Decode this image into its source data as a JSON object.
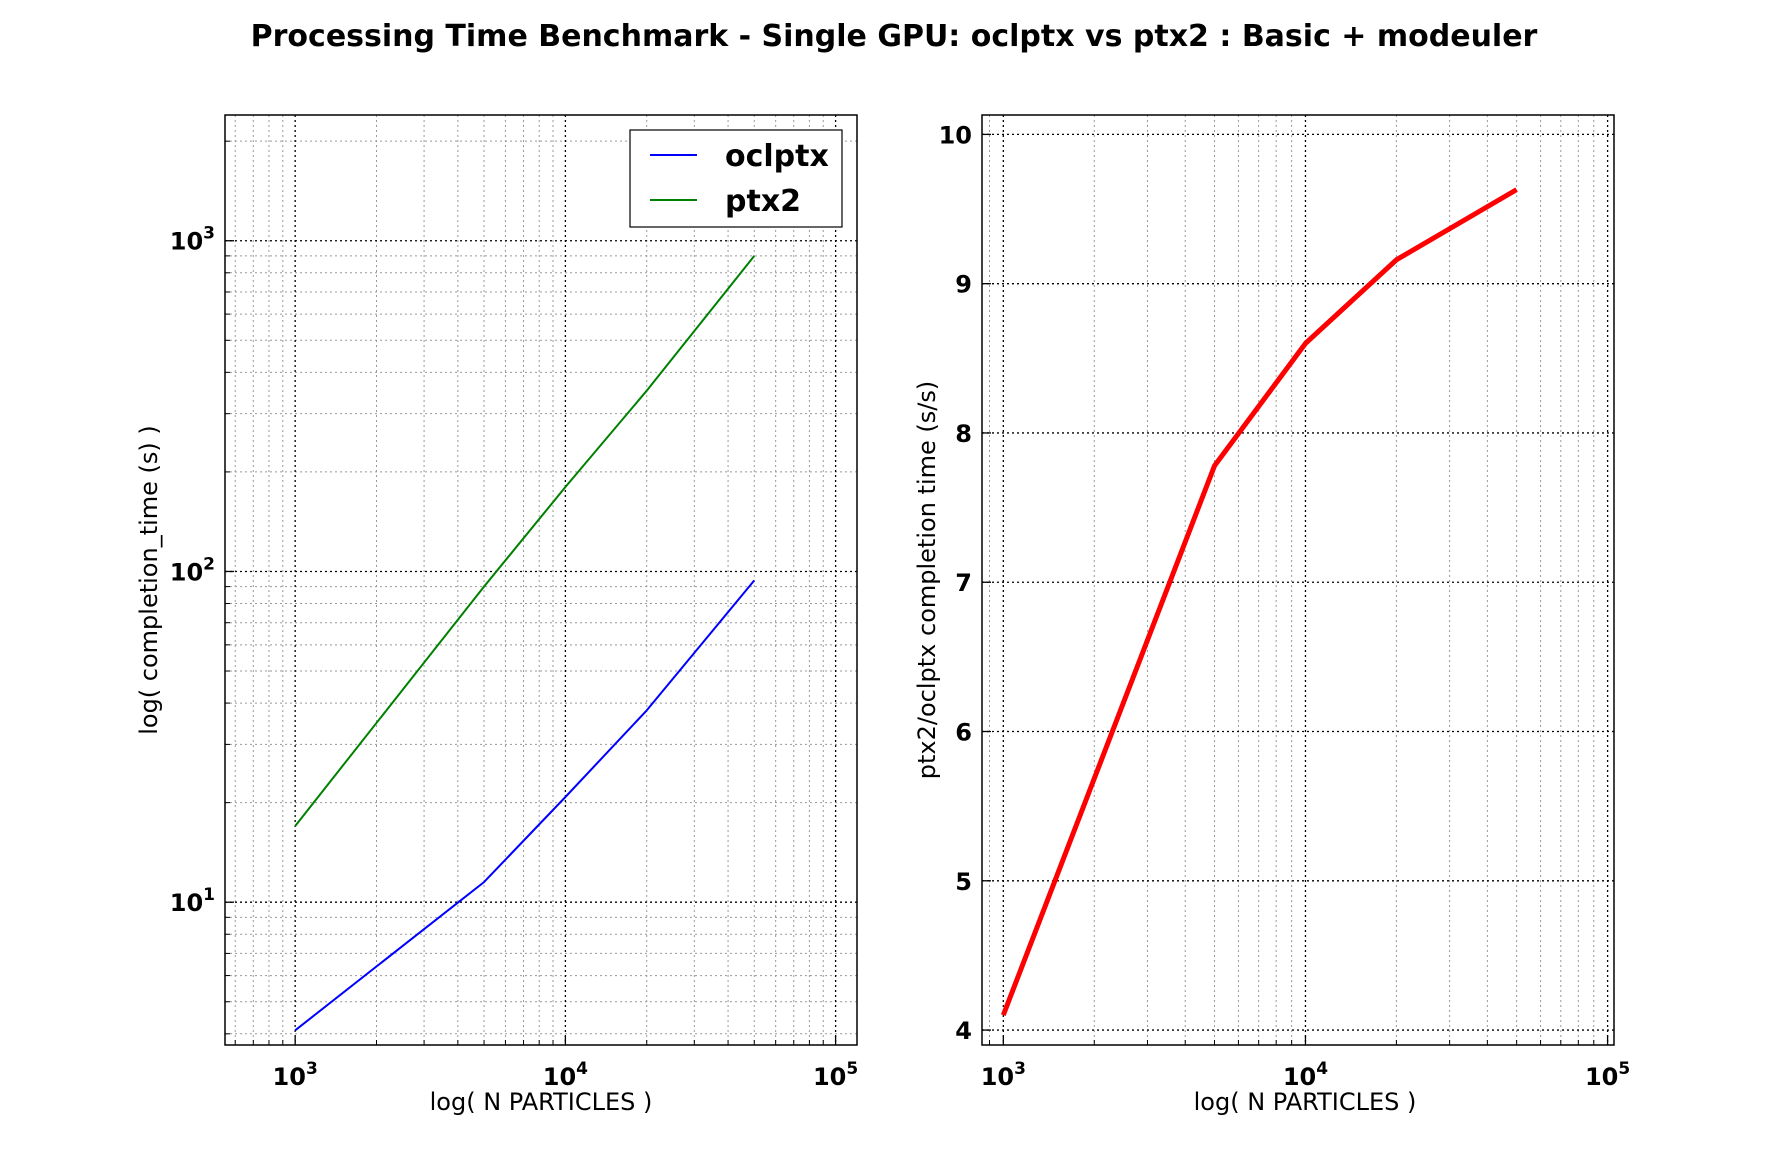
{
  "title": "Processing Time Benchmark - Single GPU: oclptx vs ptx2 : Basic + modeuler",
  "chart_data": [
    {
      "type": "line",
      "xlabel": "log( N PARTICLES )",
      "ylabel": "log( completion_time (s) )",
      "xscale": "log",
      "yscale": "log",
      "xlim": [
        550,
        120000
      ],
      "ylim": [
        3.7,
        2400
      ],
      "xticks": [
        {
          "value": 1000,
          "base": "10",
          "exp": "3"
        },
        {
          "value": 10000,
          "base": "10",
          "exp": "4"
        },
        {
          "value": 100000,
          "base": "10",
          "exp": "5"
        }
      ],
      "yticks": [
        {
          "value": 10,
          "base": "10",
          "exp": "1"
        },
        {
          "value": 100,
          "base": "10",
          "exp": "2"
        },
        {
          "value": 1000,
          "base": "10",
          "exp": "3"
        }
      ],
      "grid": true,
      "legend_position": "top-right",
      "series": [
        {
          "name": "oclptx",
          "color": "#0000ff",
          "x": [
            1000,
            5000,
            10000,
            20000,
            50000
          ],
          "y": [
            4.1,
            11.5,
            20.8,
            38,
            94
          ]
        },
        {
          "name": "ptx2",
          "color": "#008000",
          "x": [
            1000,
            5000,
            10000,
            20000,
            50000
          ],
          "y": [
            17,
            90,
            180,
            352,
            900
          ]
        }
      ]
    },
    {
      "type": "line",
      "xlabel": "log( N PARTICLES )",
      "ylabel": "ptx2/oclptx completion time (s/s)",
      "xscale": "log",
      "yscale": "linear",
      "xlim": [
        850,
        105000
      ],
      "ylim": [
        3.9,
        10.13
      ],
      "xticks": [
        {
          "value": 1000,
          "base": "10",
          "exp": "3"
        },
        {
          "value": 10000,
          "base": "10",
          "exp": "4"
        },
        {
          "value": 100000,
          "base": "10",
          "exp": "5"
        }
      ],
      "yticks": [
        {
          "value": 4,
          "label": "4"
        },
        {
          "value": 5,
          "label": "5"
        },
        {
          "value": 6,
          "label": "6"
        },
        {
          "value": 7,
          "label": "7"
        },
        {
          "value": 8,
          "label": "8"
        },
        {
          "value": 9,
          "label": "9"
        },
        {
          "value": 10,
          "label": "10"
        }
      ],
      "grid": true,
      "series": [
        {
          "color": "#ff0000",
          "x": [
            1000,
            5000,
            10000,
            20000,
            50000
          ],
          "y": [
            4.1,
            7.78,
            8.6,
            9.16,
            9.63
          ]
        }
      ]
    }
  ]
}
